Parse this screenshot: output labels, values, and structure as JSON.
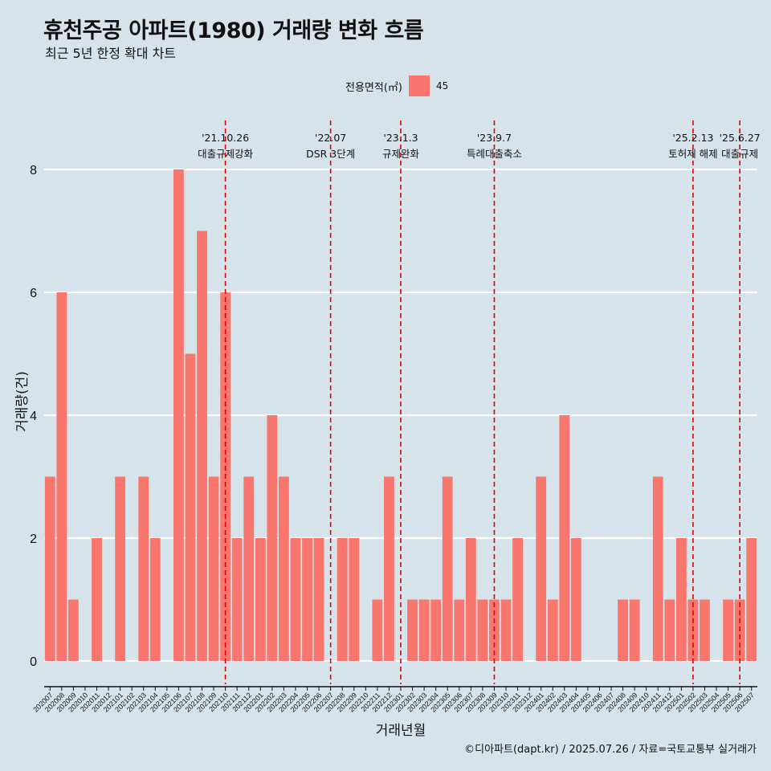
{
  "title": "휴천주공 아파트(1980) 거래량 변화 흐름",
  "subtitle": "최근 5년 한정 확대 차트",
  "legend": {
    "title": "전용면적(㎡)",
    "item": "45"
  },
  "caption": "©디아파트(dapt.kr) / 2025.07.26 / 자료=국토교통부 실거래가",
  "colors": {
    "bar": "#f8766d",
    "background": "#d6e3ea",
    "grid": "#ffffff",
    "event_line": "#e00000"
  },
  "chart_data": {
    "type": "bar",
    "xlabel": "거래년월",
    "ylabel": "거래량(건)",
    "ylim": [
      0,
      8
    ],
    "yticks": [
      0,
      2,
      4,
      6,
      8
    ],
    "grid": "horizontal",
    "legend_position": "top",
    "categories": [
      "202007",
      "202008",
      "202009",
      "202010",
      "202011",
      "202012",
      "202101",
      "202102",
      "202103",
      "202104",
      "202105",
      "202106",
      "202107",
      "202108",
      "202109",
      "202110",
      "202111",
      "202112",
      "202201",
      "202202",
      "202203",
      "202204",
      "202205",
      "202206",
      "202207",
      "202208",
      "202209",
      "202210",
      "202211",
      "202212",
      "202301",
      "202302",
      "202303",
      "202304",
      "202305",
      "202306",
      "202307",
      "202308",
      "202309",
      "202310",
      "202311",
      "202312",
      "202401",
      "202402",
      "202403",
      "202404",
      "202405",
      "202406",
      "202407",
      "202408",
      "202409",
      "202410",
      "202411",
      "202412",
      "202501",
      "202502",
      "202503",
      "202504",
      "202505",
      "202506",
      "202507"
    ],
    "series": [
      {
        "name": "45",
        "values": [
          3,
          6,
          1,
          0,
          2,
          0,
          3,
          0,
          3,
          2,
          0,
          8,
          5,
          7,
          3,
          6,
          2,
          3,
          2,
          4,
          3,
          2,
          2,
          2,
          0,
          2,
          2,
          0,
          1,
          3,
          0,
          1,
          1,
          1,
          3,
          1,
          2,
          1,
          1,
          1,
          2,
          0,
          3,
          1,
          4,
          2,
          0,
          0,
          0,
          1,
          1,
          0,
          3,
          1,
          2,
          1,
          1,
          0,
          1,
          1,
          2
        ]
      }
    ],
    "annotations": [
      {
        "date": "'21.10.26",
        "label": "대출규제강화",
        "at": "202110"
      },
      {
        "date": "'22.07",
        "label": "DSR 3단계",
        "at": "202207"
      },
      {
        "date": "'23.1.3",
        "label": "규제완화",
        "at": "202301"
      },
      {
        "date": "'23.9.7",
        "label": "특례대출축소",
        "at": "202309"
      },
      {
        "date": "'25.2.13",
        "label": "토허제 해제",
        "at": "202502"
      },
      {
        "date": "'25.6.27",
        "label": "대출규제",
        "at": "202506"
      }
    ]
  }
}
